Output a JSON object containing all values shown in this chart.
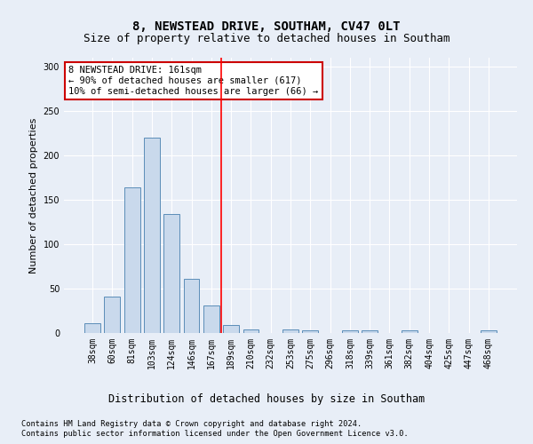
{
  "title": "8, NEWSTEAD DRIVE, SOUTHAM, CV47 0LT",
  "subtitle": "Size of property relative to detached houses in Southam",
  "xlabel": "Distribution of detached houses by size in Southam",
  "ylabel": "Number of detached properties",
  "categories": [
    "38sqm",
    "60sqm",
    "81sqm",
    "103sqm",
    "124sqm",
    "146sqm",
    "167sqm",
    "189sqm",
    "210sqm",
    "232sqm",
    "253sqm",
    "275sqm",
    "296sqm",
    "318sqm",
    "339sqm",
    "361sqm",
    "382sqm",
    "404sqm",
    "425sqm",
    "447sqm",
    "468sqm"
  ],
  "values": [
    11,
    41,
    164,
    220,
    134,
    61,
    31,
    9,
    4,
    0,
    4,
    3,
    0,
    3,
    3,
    0,
    3,
    0,
    0,
    0,
    3
  ],
  "bar_color": "#c9d9ec",
  "bar_edge_color": "#5b8db8",
  "red_line_x": 6.5,
  "annotation_text": "8 NEWSTEAD DRIVE: 161sqm\n← 90% of detached houses are smaller (617)\n10% of semi-detached houses are larger (66) →",
  "annotation_box_color": "#ffffff",
  "annotation_box_edge_color": "#cc0000",
  "ylim": [
    0,
    310
  ],
  "yticks": [
    0,
    50,
    100,
    150,
    200,
    250,
    300
  ],
  "background_color": "#e8eef7",
  "grid_color": "#ffffff",
  "footer_line1": "Contains HM Land Registry data © Crown copyright and database right 2024.",
  "footer_line2": "Contains public sector information licensed under the Open Government Licence v3.0.",
  "title_fontsize": 10,
  "subtitle_fontsize": 9,
  "xlabel_fontsize": 8.5,
  "ylabel_fontsize": 8,
  "tick_fontsize": 7,
  "annotation_fontsize": 7.5,
  "footer_fontsize": 6.2
}
